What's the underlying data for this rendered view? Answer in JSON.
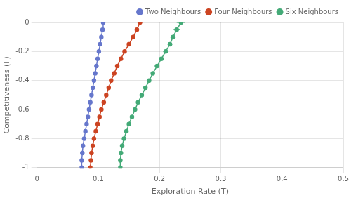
{
  "chart_data": {
    "type": "line",
    "xlabel": "Exploration Rate (Τ)",
    "ylabel": "Competitiveness (Γ)",
    "xlim": [
      0,
      0.5
    ],
    "ylim": [
      -1.0,
      0.0
    ],
    "xticks": [
      0,
      0.1,
      0.2,
      0.3,
      0.4,
      0.5
    ],
    "yticks": [
      0,
      -0.2,
      -0.4,
      -0.6,
      -0.8,
      -1.0
    ],
    "grid": true,
    "legend": "upper right",
    "series": [
      {
        "name": "Two Neighbours",
        "color": "#6677cc",
        "marker": "o",
        "x": [
          0.073,
          0.073,
          0.074,
          0.075,
          0.077,
          0.079,
          0.081,
          0.083,
          0.085,
          0.087,
          0.089,
          0.091,
          0.093,
          0.095,
          0.097,
          0.099,
          0.101,
          0.103,
          0.105,
          0.107,
          0.108
        ],
        "values": [
          -1.0,
          -0.95,
          -0.9,
          -0.85,
          -0.8,
          -0.75,
          -0.7,
          -0.65,
          -0.6,
          -0.55,
          -0.5,
          -0.45,
          -0.4,
          -0.35,
          -0.3,
          -0.25,
          -0.2,
          -0.15,
          -0.1,
          -0.05,
          0.0
        ],
        "xerr": [
          0.003,
          0.002,
          0.002,
          0.002,
          0.002,
          0.002,
          0.002,
          0.002,
          0.002,
          0.002,
          0.002,
          0.002,
          0.002,
          0.002,
          0.002,
          0.002,
          0.002,
          0.002,
          0.002,
          0.002,
          0.003
        ]
      },
      {
        "name": "Four Neighbours",
        "color": "#cc4422",
        "marker": "o",
        "x": [
          0.087,
          0.088,
          0.089,
          0.091,
          0.093,
          0.096,
          0.099,
          0.102,
          0.105,
          0.109,
          0.113,
          0.117,
          0.121,
          0.126,
          0.131,
          0.137,
          0.143,
          0.15,
          0.157,
          0.163,
          0.168
        ],
        "values": [
          -1.0,
          -0.95,
          -0.9,
          -0.85,
          -0.8,
          -0.75,
          -0.7,
          -0.65,
          -0.6,
          -0.55,
          -0.5,
          -0.45,
          -0.4,
          -0.35,
          -0.3,
          -0.25,
          -0.2,
          -0.15,
          -0.1,
          -0.05,
          0.0
        ],
        "xerr": [
          0.002,
          0.002,
          0.002,
          0.002,
          0.002,
          0.002,
          0.002,
          0.002,
          0.002,
          0.002,
          0.002,
          0.002,
          0.002,
          0.002,
          0.002,
          0.003,
          0.003,
          0.003,
          0.003,
          0.003,
          0.004
        ]
      },
      {
        "name": "Six Neighbours",
        "color": "#44aa77",
        "marker": "o",
        "x": [
          0.136,
          0.136,
          0.137,
          0.139,
          0.142,
          0.146,
          0.15,
          0.155,
          0.16,
          0.165,
          0.171,
          0.177,
          0.183,
          0.189,
          0.196,
          0.203,
          0.21,
          0.217,
          0.222,
          0.228,
          0.235
        ],
        "values": [
          -1.0,
          -0.95,
          -0.9,
          -0.85,
          -0.8,
          -0.75,
          -0.7,
          -0.65,
          -0.6,
          -0.55,
          -0.5,
          -0.45,
          -0.4,
          -0.35,
          -0.3,
          -0.25,
          -0.2,
          -0.15,
          -0.1,
          -0.05,
          0.0
        ],
        "xerr": [
          0.003,
          0.003,
          0.003,
          0.003,
          0.003,
          0.003,
          0.003,
          0.003,
          0.003,
          0.003,
          0.003,
          0.003,
          0.003,
          0.003,
          0.004,
          0.004,
          0.004,
          0.004,
          0.005,
          0.005,
          0.007
        ]
      }
    ]
  }
}
